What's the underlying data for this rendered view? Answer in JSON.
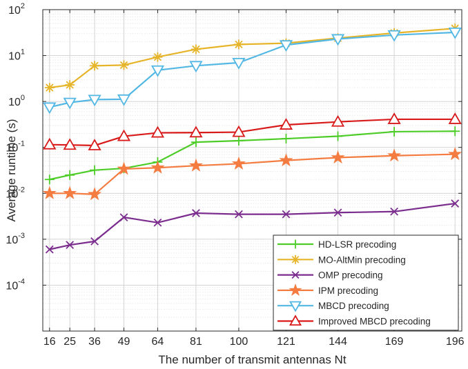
{
  "chart_data": {
    "type": "line",
    "yscale": "log",
    "xlabel": "The number of transmit antennas Nt",
    "ylabel": "Average runtime (s)",
    "x": [
      16,
      25,
      36,
      49,
      64,
      81,
      100,
      121,
      144,
      169,
      196
    ],
    "x_tick_labels": [
      "16",
      "25",
      "36",
      "49",
      "64",
      "81",
      "100",
      "121",
      "144",
      "169",
      "196"
    ],
    "ylim": [
      1e-05,
      100
    ],
    "y_ticks": [
      {
        "base": "10",
        "exp": "2",
        "value": 100
      },
      {
        "base": "10",
        "exp": "1",
        "value": 10
      },
      {
        "base": "10",
        "exp": "0",
        "value": 1
      },
      {
        "base": "10",
        "exp": "-1",
        "value": 0.1
      },
      {
        "base": "10",
        "exp": "-2",
        "value": 0.01
      },
      {
        "base": "10",
        "exp": "-3",
        "value": 0.001
      },
      {
        "base": "10",
        "exp": "-4",
        "value": 0.0001
      }
    ],
    "grid": true,
    "legend_position": "bottom-right",
    "series": [
      {
        "name": "HD-LSR precoding",
        "color": "#4dcc28",
        "marker": "plus",
        "values": [
          0.02,
          0.025,
          0.032,
          0.035,
          0.048,
          0.13,
          0.14,
          0.155,
          0.175,
          0.22,
          0.225
        ]
      },
      {
        "name": "MO-AltMin precoding",
        "color": "#e6b429",
        "marker": "asterisk",
        "values": [
          2.0,
          2.3,
          6.0,
          6.2,
          9.3,
          13.7,
          17.5,
          18.6,
          24.0,
          31.0,
          39.0
        ]
      },
      {
        "name": "OMP precoding",
        "color": "#7b2d8e",
        "marker": "x",
        "values": [
          0.0006,
          0.00075,
          0.0009,
          0.003,
          0.0023,
          0.0037,
          0.0035,
          0.0035,
          0.0038,
          0.004,
          0.006
        ]
      },
      {
        "name": "IPM precoding",
        "color": "#f47c41",
        "marker": "star",
        "values": [
          0.01,
          0.01,
          0.0095,
          0.034,
          0.036,
          0.04,
          0.044,
          0.052,
          0.06,
          0.066,
          0.071
        ]
      },
      {
        "name": "MBCD precoding",
        "color": "#52b7e3",
        "marker": "triangle-down",
        "values": [
          0.75,
          0.95,
          1.1,
          1.12,
          4.8,
          6.0,
          7.0,
          17.0,
          23.0,
          28.0,
          32.0
        ]
      },
      {
        "name": "Improved MBCD precoding",
        "color": "#d91a1a",
        "marker": "triangle-up",
        "values": [
          0.115,
          0.113,
          0.11,
          0.175,
          0.208,
          0.21,
          0.215,
          0.31,
          0.36,
          0.41,
          0.41
        ]
      }
    ]
  }
}
